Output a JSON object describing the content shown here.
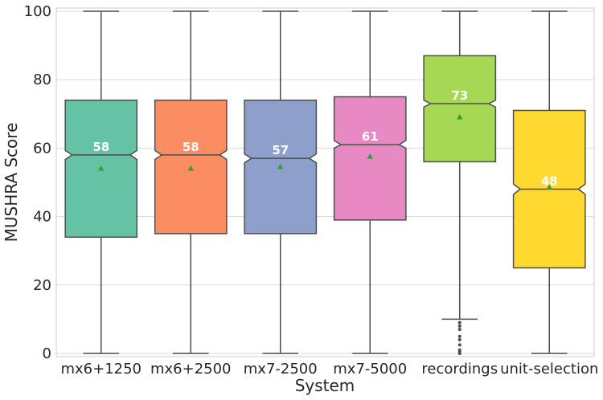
{
  "chart_data": {
    "type": "box",
    "title": "",
    "xlabel": "System",
    "ylabel": "MUSHRA Score",
    "ylim": [
      0,
      100
    ],
    "yticks": [
      0,
      20,
      40,
      60,
      80,
      100
    ],
    "grid": true,
    "categories": [
      "mx6+1250",
      "mx6+2500",
      "mx7-2500",
      "mx7-5000",
      "recordings",
      "unit-selection"
    ],
    "boxes": [
      {
        "category": "mx6+1250",
        "whisker_low": 0,
        "q1": 34,
        "median": 58,
        "q3": 74,
        "whisker_high": 100,
        "mean": 54,
        "notch_low": 56.7,
        "notch_high": 59.3,
        "color": "#66c2a5"
      },
      {
        "category": "mx6+2500",
        "whisker_low": 0,
        "q1": 35,
        "median": 58,
        "q3": 74,
        "whisker_high": 100,
        "mean": 54,
        "notch_low": 56.7,
        "notch_high": 59.3,
        "color": "#fc8d62"
      },
      {
        "category": "mx7-2500",
        "whisker_low": 0,
        "q1": 35,
        "median": 57,
        "q3": 74,
        "whisker_high": 100,
        "mean": 54.5,
        "notch_low": 55.7,
        "notch_high": 58.3,
        "color": "#8da0cb"
      },
      {
        "category": "mx7-5000",
        "whisker_low": 0,
        "q1": 39,
        "median": 61,
        "q3": 75,
        "whisker_high": 100,
        "mean": 57.5,
        "notch_low": 60,
        "notch_high": 62.2,
        "color": "#e78ac3"
      },
      {
        "category": "recordings",
        "whisker_low": 10,
        "q1": 56,
        "median": 73,
        "q3": 87,
        "whisker_high": 100,
        "mean": 69,
        "notch_low": 72,
        "notch_high": 74,
        "color": "#a6d854",
        "outliers": [
          0,
          0.5,
          1,
          2.5,
          4,
          5,
          7,
          8,
          9
        ]
      },
      {
        "category": "unit-selection",
        "whisker_low": 0,
        "q1": 25,
        "median": 48,
        "q3": 71,
        "whisker_high": 100,
        "mean": 48.5,
        "notch_low": 46.5,
        "notch_high": 49.5,
        "color": "#ffd92f"
      }
    ],
    "median_labels": [
      "58",
      "58",
      "57",
      "61",
      "73",
      "48"
    ],
    "styles": {
      "mean_marker_color": "#2ca02c",
      "line_color": "#4d4d4d",
      "grid_color": "#d9d9d9",
      "axes_edge_color": "#cccccc"
    }
  }
}
